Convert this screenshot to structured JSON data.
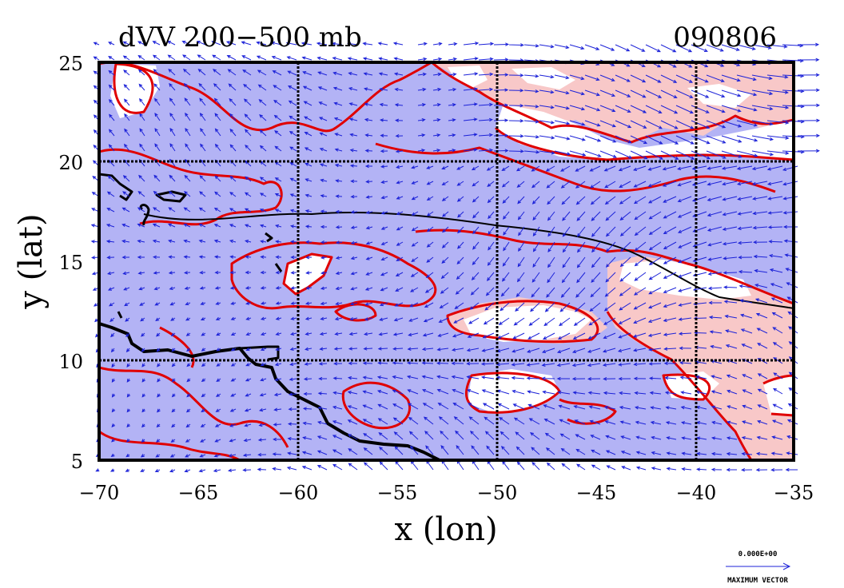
{
  "title_left": "dVV 200−500 mb",
  "title_right": "090806",
  "x_axis": {
    "label": "x (lon)",
    "ticks": [
      "−70",
      "−65",
      "−60",
      "−55",
      "−50",
      "−45",
      "−40",
      "−35"
    ]
  },
  "y_axis": {
    "label": "y (lat)",
    "ticks": [
      "25",
      "20",
      "15",
      "10",
      "5"
    ]
  },
  "vector_key": {
    "magnitude": "0.000E+00",
    "caption": "MAXIMUM VECTOR"
  },
  "colors": {
    "background_field": "#b3b3f5",
    "positive_field": "#f8c8c8",
    "contour": "#e00000",
    "vectors": "#1c22d8",
    "coastline": "#000000"
  }
}
